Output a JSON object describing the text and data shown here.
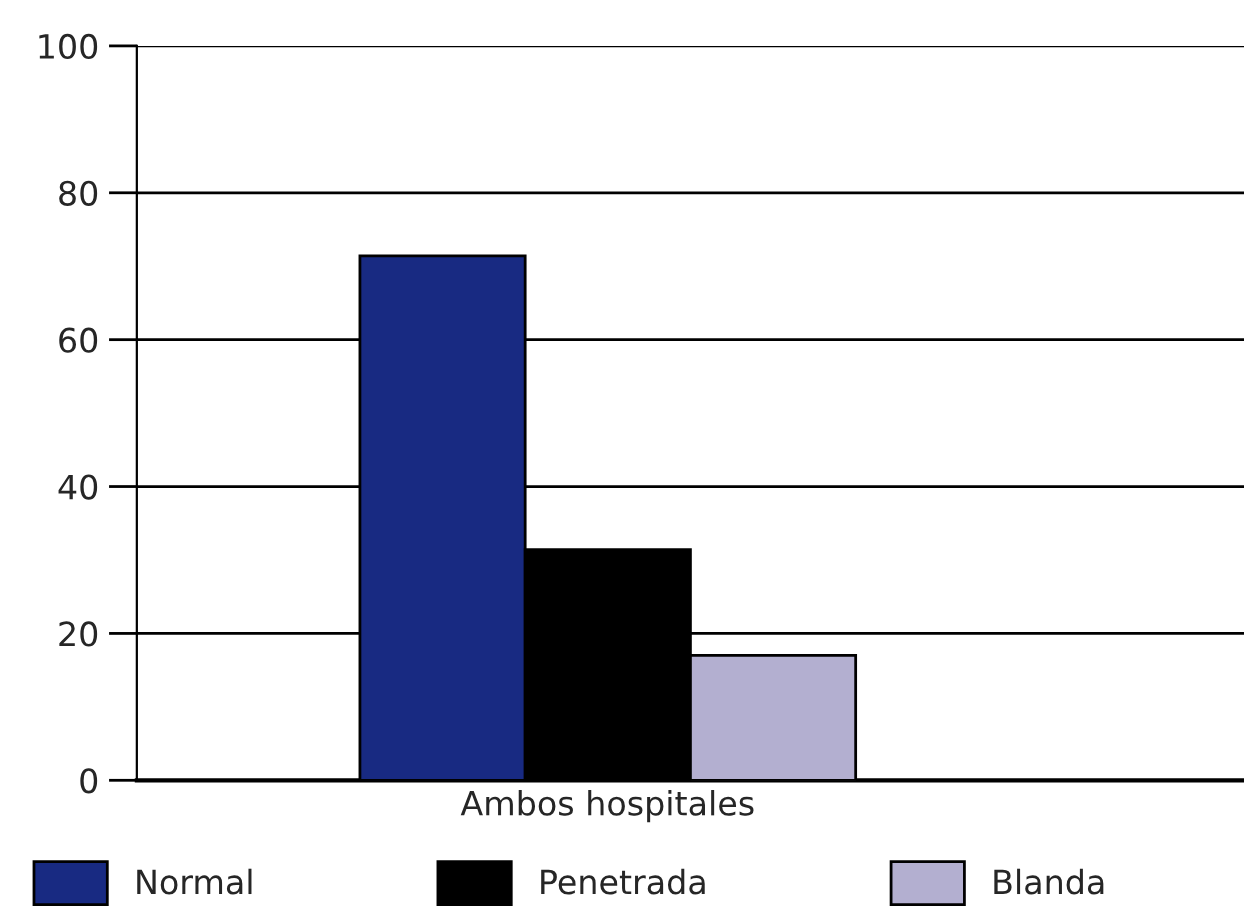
{
  "chart_data": {
    "type": "bar",
    "categories": [
      "Ambos hospitales"
    ],
    "series": [
      {
        "name": "Normal",
        "color": "#182a82",
        "values": [
          71.4
        ]
      },
      {
        "name": "Penetrada",
        "color": "#000000",
        "values": [
          31.4
        ]
      },
      {
        "name": "Blanda",
        "color": "#b3afd0",
        "values": [
          17.0
        ]
      }
    ],
    "ylim": [
      0,
      100
    ],
    "yticks": [
      0,
      20,
      40,
      60,
      80,
      100
    ],
    "grid": "y",
    "legend": "bottom"
  }
}
